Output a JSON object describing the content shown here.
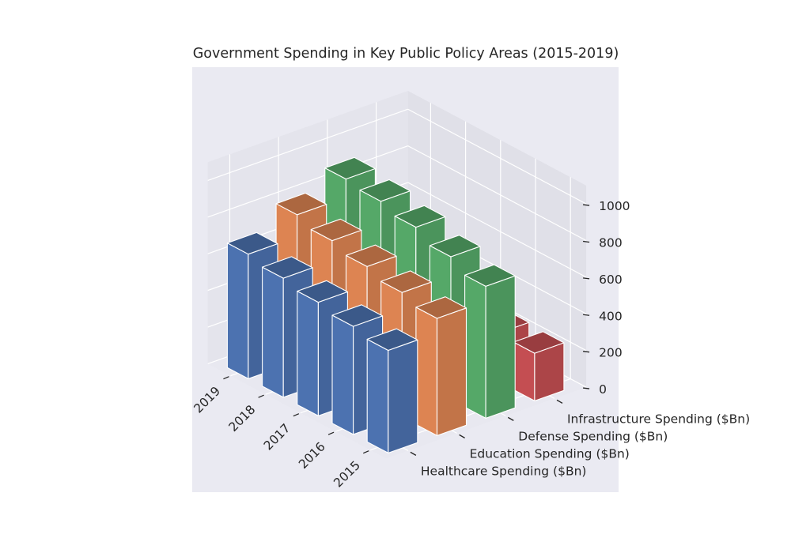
{
  "chart_data": {
    "type": "bar",
    "title": "Government Spending in Key Public Policy Areas (2015-2019)",
    "categories": [
      "2015",
      "2016",
      "2017",
      "2018",
      "2019"
    ],
    "series": [
      {
        "name": "Healthcare Spending ($Bn)",
        "values": [
          560,
          590,
          620,
          650,
          680
        ],
        "color": "#4c72b0"
      },
      {
        "name": "Education Spending ($Bn)",
        "values": [
          640,
          680,
          720,
          760,
          800
        ],
        "color": "#dd8452"
      },
      {
        "name": "Defense Spending ($Bn)",
        "values": [
          720,
          780,
          840,
          880,
          900
        ],
        "color": "#55a868"
      },
      {
        "name": "Infrastructure Spending ($Bn)",
        "values": [
          260,
          270,
          0,
          0,
          0
        ],
        "color": "#c44e52"
      }
    ],
    "zlim": [
      0,
      1100
    ],
    "z_ticks": [
      "0",
      "200",
      "400",
      "600",
      "800",
      "1000"
    ],
    "grid": true,
    "style": "3d-bar"
  }
}
